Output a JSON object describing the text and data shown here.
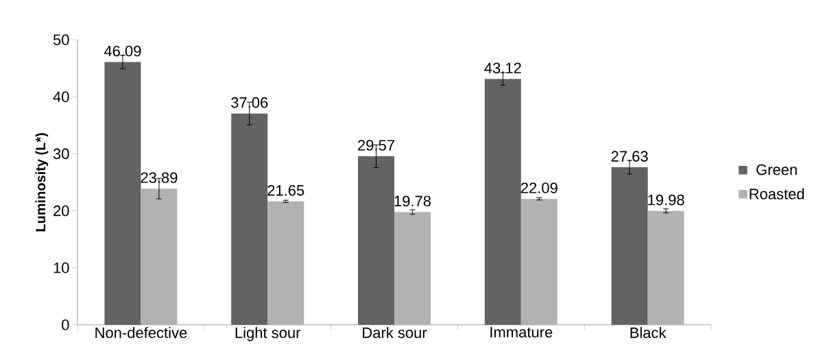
{
  "chart_data": {
    "type": "bar",
    "ylabel": "Luminosity (L*)",
    "categories": [
      "Non-defective",
      "Light sour",
      "Dark sour",
      "Immature",
      "Black"
    ],
    "series": [
      {
        "name": "Green",
        "color": "#636363",
        "values": [
          46.09,
          37.06,
          29.57,
          43.12,
          27.63
        ],
        "errors": [
          1.2,
          2.0,
          2.0,
          1.1,
          1.2
        ]
      },
      {
        "name": "Roasted",
        "color": "#b2b2b2",
        "values": [
          23.89,
          21.65,
          19.78,
          22.09,
          19.98
        ],
        "errors": [
          1.8,
          0.2,
          0.4,
          0.2,
          0.35
        ]
      }
    ],
    "ylim": [
      0,
      50
    ],
    "yticks": [
      0,
      10,
      20,
      30,
      40,
      50
    ],
    "data_labels": true,
    "legend": "right",
    "grid": false
  }
}
